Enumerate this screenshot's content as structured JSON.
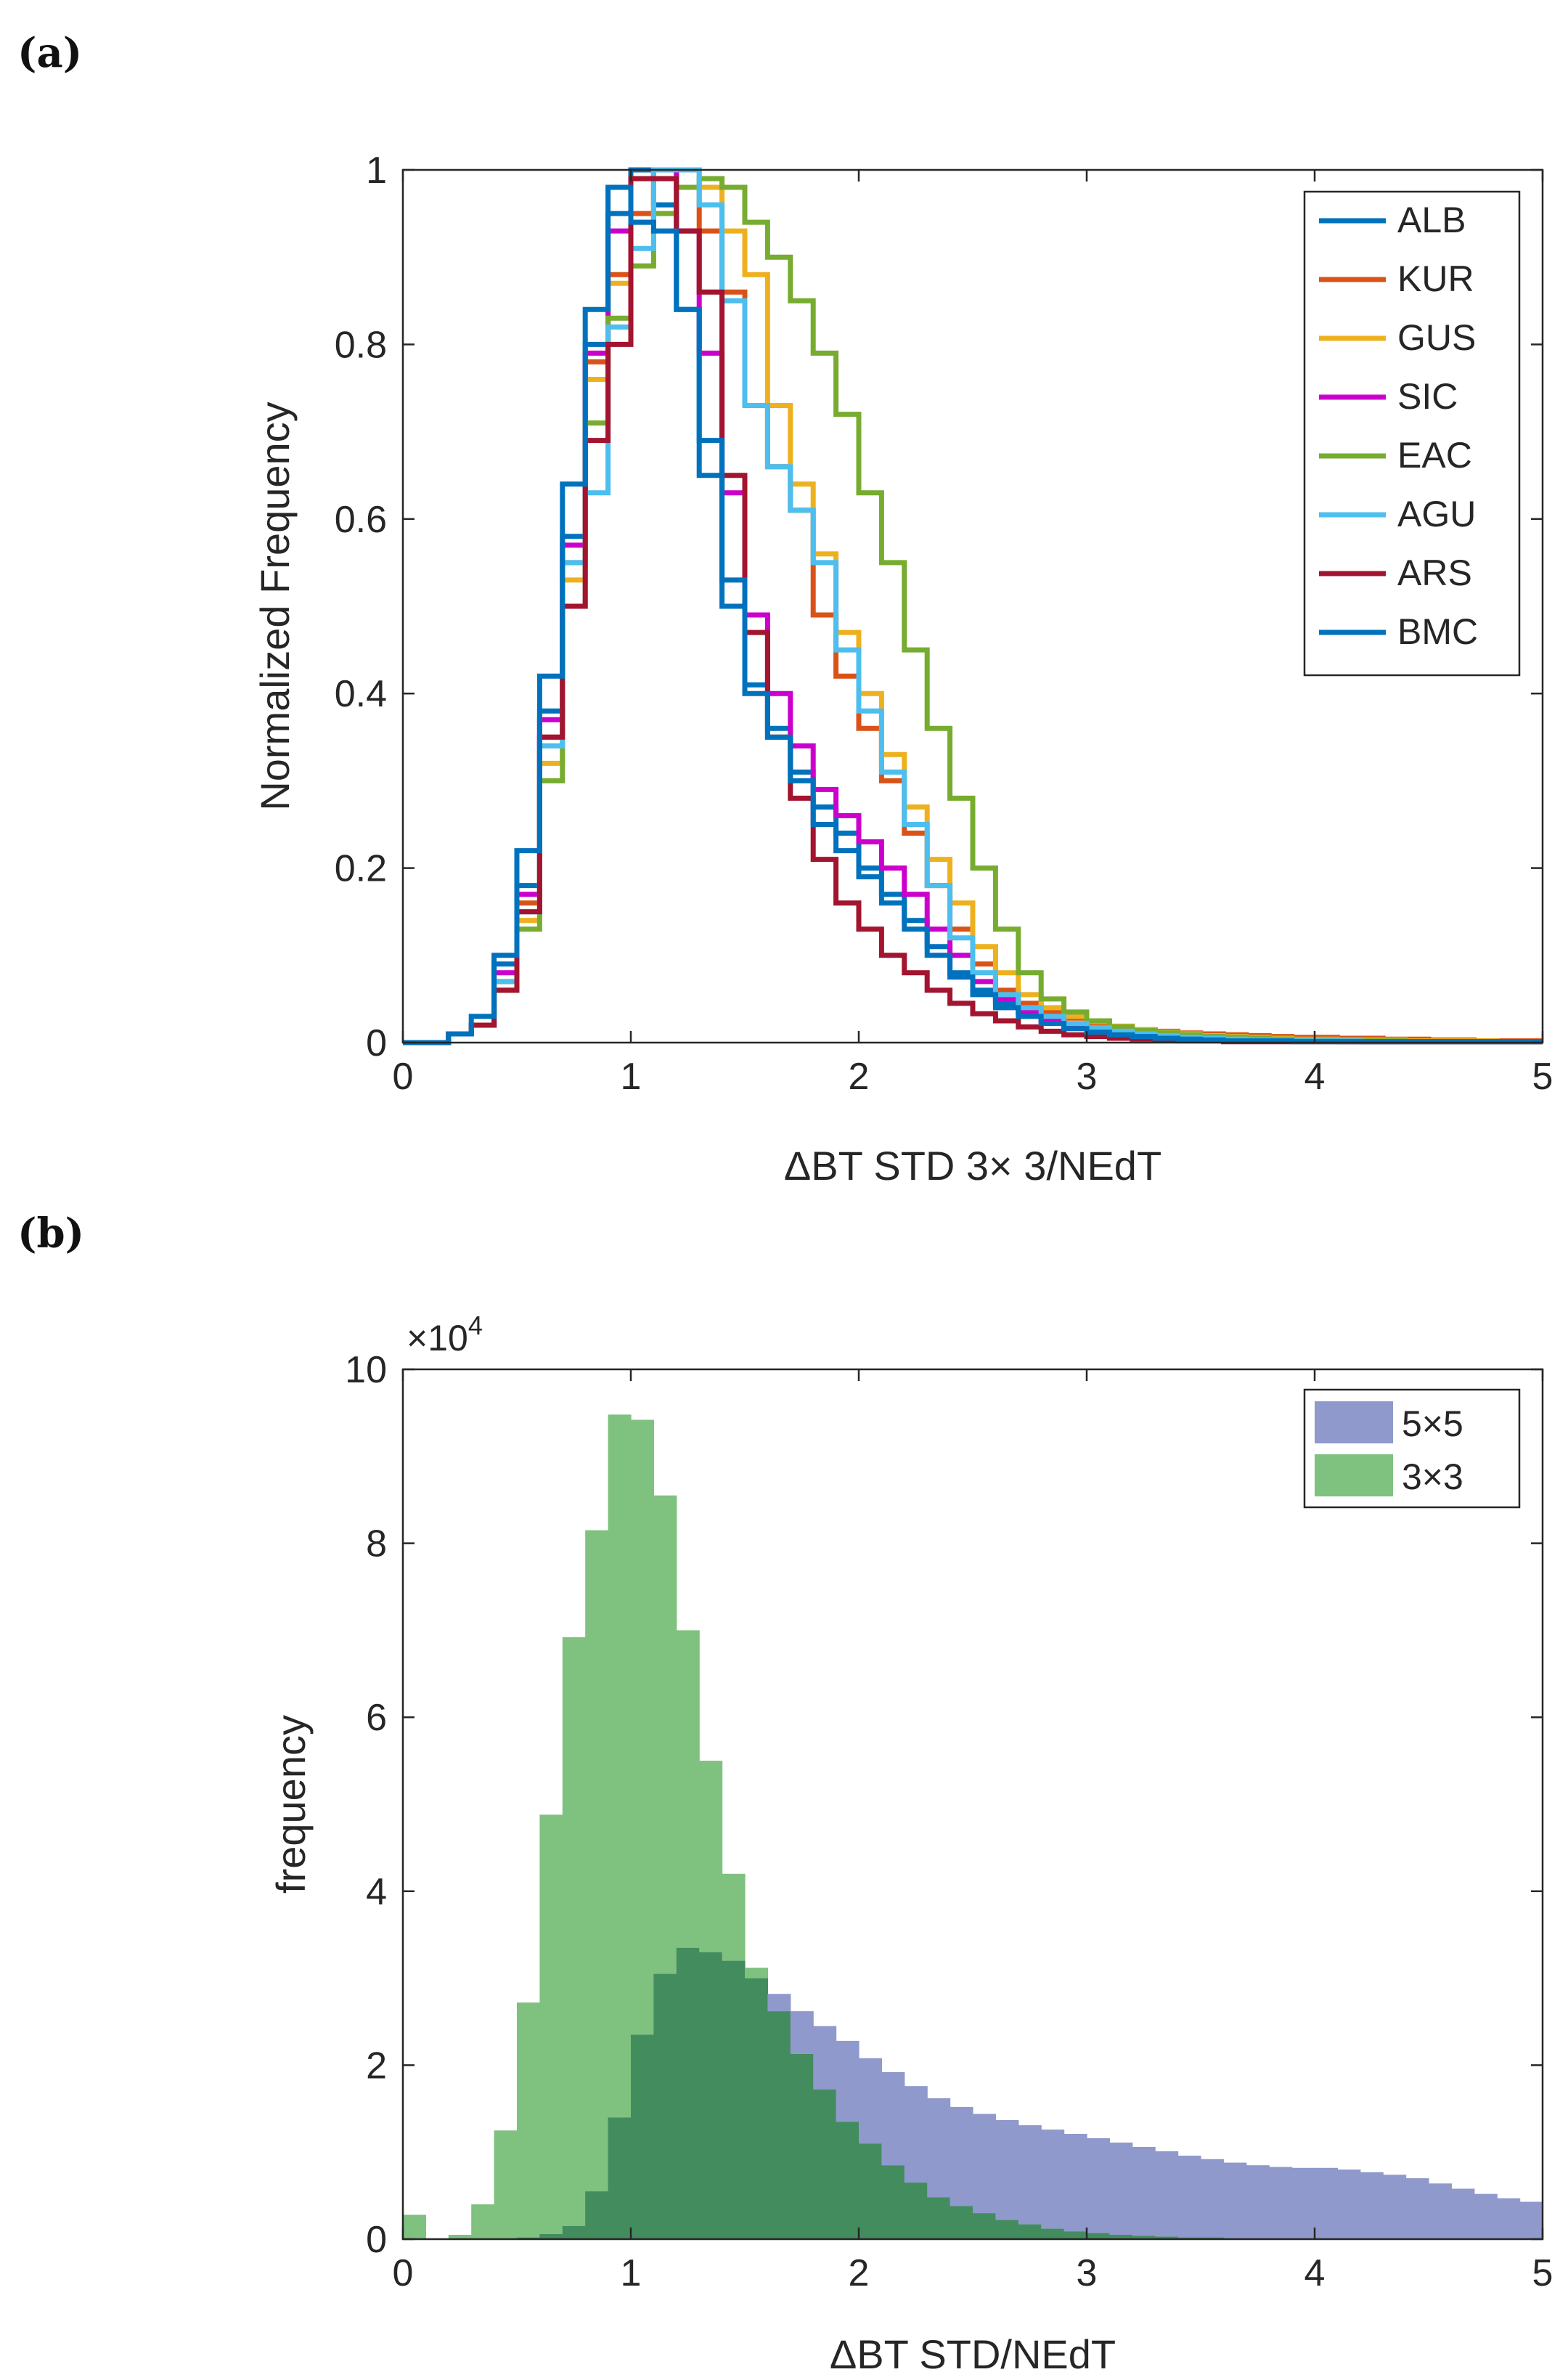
{
  "panels": {
    "a_label": "(a)",
    "b_label": "(b)"
  },
  "chart_data": [
    {
      "type": "line",
      "style": "stairs",
      "title": "",
      "xlabel": "ΔBT STD 3× 3/NEdT",
      "ylabel": "Normalized Frequency",
      "xlim": [
        0,
        5
      ],
      "ylim": [
        0,
        1
      ],
      "xticks": [
        0,
        1,
        2,
        3,
        4,
        5
      ],
      "xtick_labels": [
        "0",
        "1",
        "2",
        "3",
        "4",
        "5"
      ],
      "yticks": [
        0,
        0.2,
        0.4,
        0.6,
        0.8,
        1
      ],
      "ytick_labels": [
        "0",
        "0.2",
        "0.4",
        "0.6",
        "0.8",
        "1"
      ],
      "legend_position": "top-right",
      "bin_width": 0.1,
      "bin_edges_start": 0,
      "series": [
        {
          "name": "ALB",
          "color": "#0072BD",
          "values": [
            0,
            0,
            0.01,
            0.02,
            0.09,
            0.18,
            0.38,
            0.58,
            0.8,
            0.95,
            1.0,
            0.96,
            0.84,
            0.65,
            0.5,
            0.41,
            0.36,
            0.31,
            0.27,
            0.24,
            0.2,
            0.17,
            0.14,
            0.11,
            0.08,
            0.06,
            0.045,
            0.035,
            0.025,
            0.02,
            0.015,
            0.012,
            0.01,
            0.008,
            0.006,
            0.005,
            0.004,
            0.003,
            0.003,
            0.002,
            0.002,
            0.002,
            0.001,
            0.001,
            0.001,
            0.001,
            0.001,
            0.001,
            0.001,
            0.001
          ]
        },
        {
          "name": "KUR",
          "color": "#D95319",
          "values": [
            0,
            0,
            0.01,
            0.02,
            0.07,
            0.16,
            0.35,
            0.55,
            0.78,
            0.88,
            0.95,
            1.0,
            0.98,
            0.93,
            0.86,
            0.73,
            0.66,
            0.61,
            0.49,
            0.42,
            0.36,
            0.3,
            0.24,
            0.18,
            0.13,
            0.09,
            0.06,
            0.045,
            0.035,
            0.028,
            0.022,
            0.018,
            0.015,
            0.013,
            0.011,
            0.01,
            0.009,
            0.008,
            0.007,
            0.006,
            0.006,
            0.005,
            0.005,
            0.004,
            0.004,
            0.003,
            0.003,
            0.002,
            0.002,
            0.002
          ]
        },
        {
          "name": "GUS",
          "color": "#EDB120",
          "values": [
            0,
            0,
            0.01,
            0.02,
            0.06,
            0.14,
            0.32,
            0.53,
            0.76,
            0.87,
            0.94,
            0.99,
            1.0,
            0.98,
            0.93,
            0.88,
            0.73,
            0.64,
            0.56,
            0.47,
            0.4,
            0.33,
            0.27,
            0.21,
            0.16,
            0.11,
            0.08,
            0.055,
            0.04,
            0.03,
            0.024,
            0.019,
            0.015,
            0.012,
            0.01,
            0.008,
            0.007,
            0.006,
            0.005,
            0.004,
            0.004,
            0.003,
            0.003,
            0.003,
            0.002,
            0.002,
            0.002,
            0.002,
            0.001,
            0.001
          ]
        },
        {
          "name": "SIC",
          "color": "#CC00CC",
          "values": [
            0,
            0,
            0.01,
            0.02,
            0.08,
            0.17,
            0.37,
            0.57,
            0.79,
            0.93,
            0.99,
            1.0,
            0.93,
            0.79,
            0.63,
            0.49,
            0.4,
            0.34,
            0.29,
            0.26,
            0.23,
            0.2,
            0.17,
            0.13,
            0.1,
            0.07,
            0.05,
            0.035,
            0.025,
            0.018,
            0.013,
            0.01,
            0.008,
            0.006,
            0.005,
            0.004,
            0.003,
            0.003,
            0.002,
            0.002,
            0.002,
            0.001,
            0.001,
            0.001,
            0.001,
            0.001,
            0.001,
            0.001,
            0.001,
            0.001
          ]
        },
        {
          "name": "EAC",
          "color": "#77AC30",
          "values": [
            0,
            0,
            0.01,
            0.02,
            0.06,
            0.13,
            0.3,
            0.5,
            0.71,
            0.83,
            0.89,
            0.95,
            0.98,
            0.99,
            0.98,
            0.94,
            0.9,
            0.85,
            0.79,
            0.72,
            0.63,
            0.55,
            0.45,
            0.36,
            0.28,
            0.2,
            0.13,
            0.08,
            0.05,
            0.035,
            0.025,
            0.018,
            0.014,
            0.011,
            0.009,
            0.007,
            0.006,
            0.005,
            0.004,
            0.003,
            0.003,
            0.002,
            0.002,
            0.002,
            0.001,
            0.001,
            0.001,
            0.001,
            0.001,
            0.001
          ]
        },
        {
          "name": "AGU",
          "color": "#4DBEEE",
          "values": [
            0,
            0,
            0.01,
            0.02,
            0.07,
            0.15,
            0.34,
            0.55,
            0.63,
            0.82,
            0.91,
            1.0,
            1.0,
            0.96,
            0.85,
            0.73,
            0.66,
            0.61,
            0.55,
            0.45,
            0.38,
            0.31,
            0.25,
            0.18,
            0.12,
            0.08,
            0.055,
            0.04,
            0.03,
            0.022,
            0.017,
            0.013,
            0.01,
            0.008,
            0.006,
            0.005,
            0.004,
            0.003,
            0.003,
            0.002,
            0.002,
            0.002,
            0.001,
            0.001,
            0.001,
            0.001,
            0.001,
            0.001,
            0.001,
            0.001
          ]
        },
        {
          "name": "ARS",
          "color": "#A2142F",
          "values": [
            0,
            0,
            0.01,
            0.02,
            0.06,
            0.15,
            0.35,
            0.5,
            0.69,
            0.8,
            0.99,
            0.99,
            0.93,
            0.86,
            0.65,
            0.47,
            0.35,
            0.28,
            0.21,
            0.16,
            0.13,
            0.1,
            0.08,
            0.06,
            0.045,
            0.033,
            0.025,
            0.018,
            0.013,
            0.009,
            0.007,
            0.005,
            0.004,
            0.003,
            0.002,
            0.002,
            0.001,
            0.001,
            0.001,
            0.001,
            0.001,
            0.001,
            0.001,
            0.001,
            0.001,
            0.001,
            0.001,
            0.001,
            0.001,
            0.001
          ]
        },
        {
          "name": "BMC",
          "color": "#0072BD",
          "values": [
            0,
            0,
            0.01,
            0.03,
            0.1,
            0.22,
            0.42,
            0.64,
            0.84,
            0.98,
            0.94,
            0.93,
            0.84,
            0.69,
            0.53,
            0.4,
            0.35,
            0.3,
            0.25,
            0.22,
            0.19,
            0.16,
            0.13,
            0.1,
            0.075,
            0.055,
            0.04,
            0.03,
            0.022,
            0.016,
            0.012,
            0.009,
            0.007,
            0.005,
            0.004,
            0.003,
            0.002,
            0.002,
            0.002,
            0.001,
            0.001,
            0.001,
            0.001,
            0.001,
            0.001,
            0.001,
            0.001,
            0.001,
            0.001,
            0.001
          ]
        }
      ]
    },
    {
      "type": "bar",
      "style": "overlapping histogram",
      "title": "",
      "xlabel": "ΔBT STD/NEdT",
      "ylabel": "frequency",
      "xlim": [
        0,
        5
      ],
      "ylim": [
        0,
        100000
      ],
      "ylim_scaled": [
        0,
        10
      ],
      "y_multiplier_base": "×10",
      "y_multiplier_exp": "4",
      "xticks": [
        0,
        1,
        2,
        3,
        4,
        5
      ],
      "xtick_labels": [
        "0",
        "1",
        "2",
        "3",
        "4",
        "5"
      ],
      "yticks": [
        0,
        2,
        4,
        6,
        8,
        10
      ],
      "ytick_labels": [
        "0",
        "2",
        "4",
        "6",
        "8",
        "10"
      ],
      "legend_position": "top-right",
      "bin_width": 0.1,
      "bin_edges_start": 0,
      "overlap_color": "#438C5E",
      "series": [
        {
          "name": "5×5",
          "color": "#8F99CB",
          "values_x1e4": [
            0,
            0,
            0,
            0,
            0,
            0.02,
            0.06,
            0.15,
            0.55,
            1.4,
            2.35,
            3.05,
            3.35,
            3.3,
            3.2,
            3.0,
            2.82,
            2.62,
            2.45,
            2.28,
            2.08,
            1.92,
            1.76,
            1.62,
            1.52,
            1.44,
            1.37,
            1.31,
            1.26,
            1.21,
            1.16,
            1.11,
            1.06,
            1.01,
            0.96,
            0.92,
            0.88,
            0.85,
            0.83,
            0.82,
            0.82,
            0.8,
            0.77,
            0.74,
            0.7,
            0.64,
            0.58,
            0.52,
            0.47,
            0.43
          ]
        },
        {
          "name": "3×3",
          "color": "#7FC17F",
          "values_x1e4": [
            0.28,
            0.0,
            0.05,
            0.4,
            1.25,
            2.72,
            4.88,
            6.92,
            8.15,
            9.48,
            9.42,
            8.55,
            7.0,
            5.5,
            4.2,
            3.12,
            2.62,
            2.13,
            1.72,
            1.35,
            1.1,
            0.85,
            0.65,
            0.48,
            0.38,
            0.3,
            0.22,
            0.17,
            0.12,
            0.09,
            0.07,
            0.05,
            0.04,
            0.03,
            0.02,
            0.02,
            0.01,
            0.01,
            0.01,
            0.01,
            0.0,
            0.0,
            0.0,
            0.0,
            0.0,
            0.0,
            0.0,
            0.0,
            0.0,
            0.0
          ]
        }
      ]
    }
  ]
}
